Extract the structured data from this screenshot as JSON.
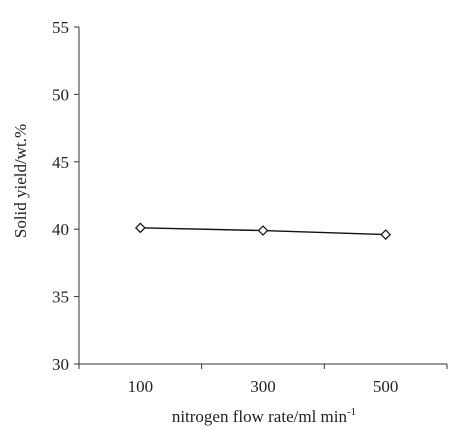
{
  "chart_data": {
    "type": "line",
    "categories": [
      "100",
      "300",
      "500"
    ],
    "series": [
      {
        "values": [
          40.1,
          39.9,
          39.6
        ]
      }
    ],
    "ylim": [
      30,
      55
    ],
    "yticks": [
      30,
      35,
      40,
      45,
      50,
      55
    ],
    "xlabel": "nitrogen flow rate/ml min",
    "xlabel_superscript": "-1",
    "ylabel": "Solid yield/wt.%",
    "grid": false,
    "marker": "diamond",
    "colors": {
      "line": "#111111",
      "marker_fill": "#ffffff",
      "axis": "#333333"
    }
  }
}
